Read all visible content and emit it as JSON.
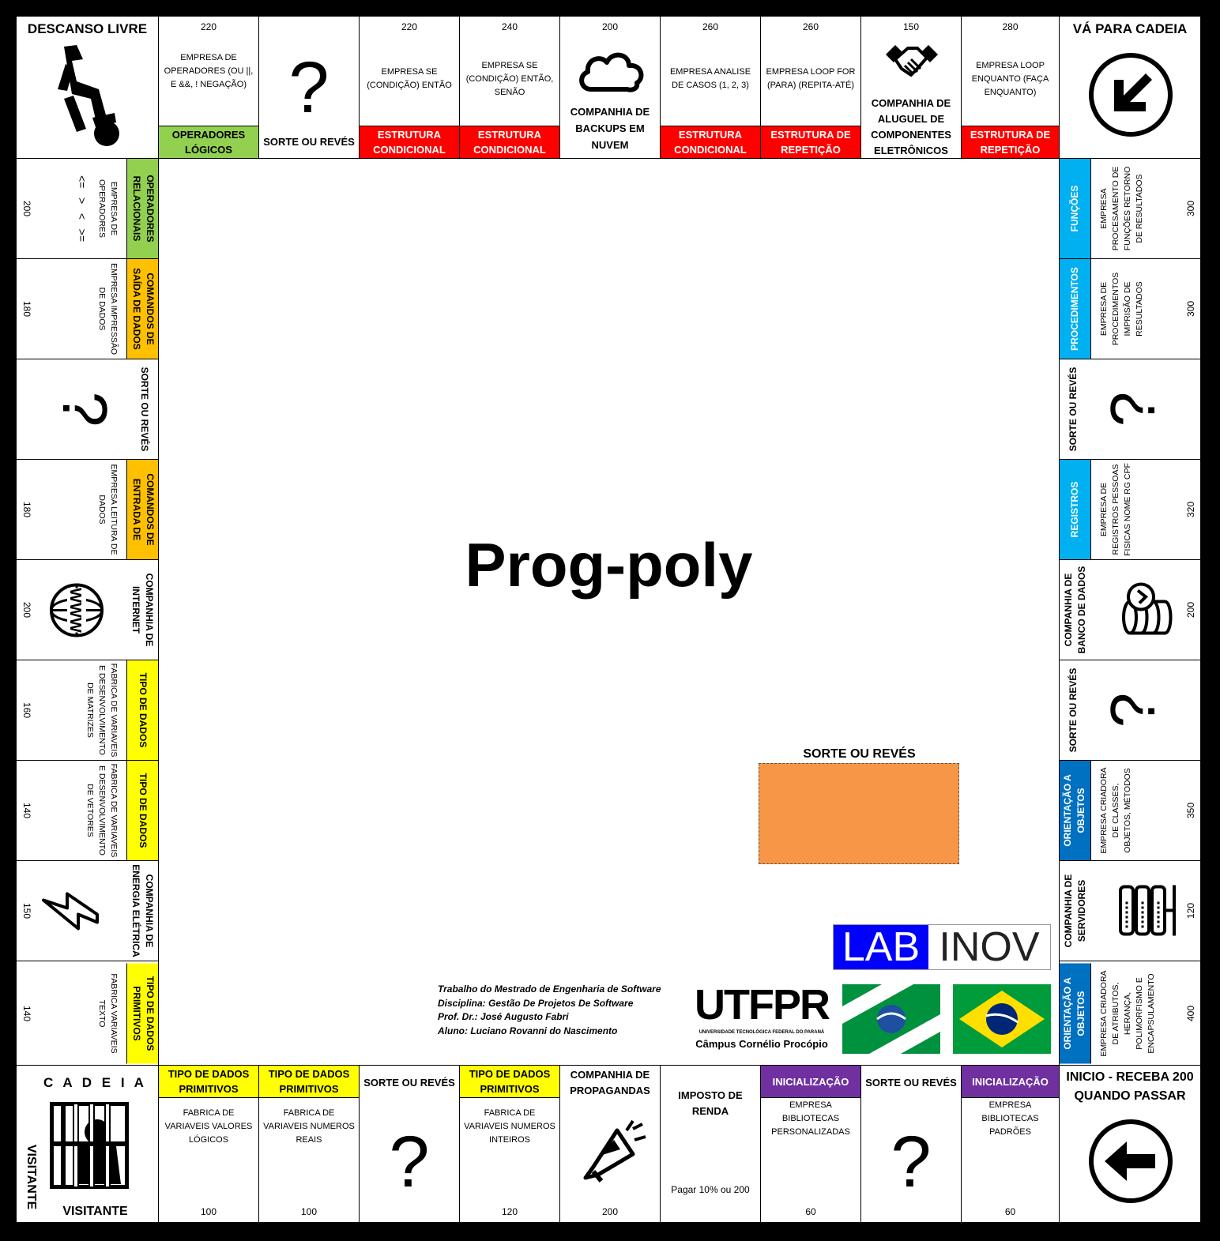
{
  "game": {
    "title": "Prog-poly"
  },
  "colors": {
    "green": "#92d050",
    "red": "#ff0000",
    "orange": "#ffc000",
    "yellow": "#ffff00",
    "light_blue": "#00b0f0",
    "dark_blue": "#0070c0",
    "purple": "#7030a0",
    "card_orange": "#f79646"
  },
  "corners": {
    "free_parking": "DESCANSO LIVRE",
    "go_to_jail": "VÁ PARA CADEIA",
    "jail_top": "C A D E I A",
    "jail_side": "VISITANTE",
    "jail_bottom": "VISITANTE",
    "start_line1": "INICIO - RECEBA 200",
    "start_line2": "QUANDO PASSAR"
  },
  "top_row": [
    {
      "price": "220",
      "desc": "EMPRESA DE OPERADORES (OU ||, E &&, ! NEGAÇÃO)",
      "band": "OPERADORES LÓGICOS",
      "color": "#92d050"
    },
    {
      "label": "SORTE OU REVÉS",
      "icon": "question-mark"
    },
    {
      "price": "220",
      "desc": "EMPRESA SE (CONDIÇÃO) ENTÃO",
      "band": "ESTRUTURA CONDICIONAL",
      "color": "#ff0000"
    },
    {
      "price": "240",
      "desc": "EMPRESA SE (CONDIÇÃO) ENTÃO, SENÃO",
      "band": "ESTRUTURA CONDICIONAL",
      "color": "#ff0000"
    },
    {
      "price": "200",
      "label": "COMPANHIA DE BACKUPS EM NUVEM",
      "icon": "cloud"
    },
    {
      "price": "260",
      "desc": "EMPRESA ANALISE DE CASOS (1, 2, 3)",
      "band": "ESTRUTURA CONDICIONAL",
      "color": "#ff0000"
    },
    {
      "price": "260",
      "desc": "EMPRESA LOOP FOR (PARA) (REPITA-ATÉ)",
      "band": "ESTRUTURA DE REPETIÇÃO",
      "color": "#ff0000"
    },
    {
      "price": "150",
      "label": "COMPANHIA DE ALUGUEL DE COMPONENTES ELETRÔNICOS",
      "icon": "handshake"
    },
    {
      "price": "280",
      "desc": "EMPRESA LOOP ENQUANTO (FAÇA ENQUANTO)",
      "band": "ESTRUTURA DE REPETIÇÃO",
      "color": "#ff0000"
    }
  ],
  "bottom_row": [
    {
      "price": "100",
      "desc": "FABRICA DE VARIAVEIS VALORES LÓGICOS",
      "band": "TIPO DE DADOS PRIMITIVOS",
      "color": "#ffff00"
    },
    {
      "price": "100",
      "desc": "FABRICA DE VARIAVEIS NUMEROS REAIS",
      "band": "TIPO DE DADOS PRIMITIVOS",
      "color": "#ffff00"
    },
    {
      "label": "SORTE OU REVÉS",
      "icon": "question-mark"
    },
    {
      "price": "120",
      "desc": "FABRICA DE VARIAVEIS NUMEROS INTEIROS",
      "band": "TIPO DE DADOS PRIMITIVOS",
      "color": "#ffff00"
    },
    {
      "price": "200",
      "label": "COMPANHIA DE PROPAGANDAS",
      "icon": "megaphone"
    },
    {
      "label": "IMPOSTO DE RENDA",
      "note": "Pagar 10% ou 200"
    },
    {
      "price": "60",
      "desc": "EMPRESA BIBLIOTECAS PERSONALIZADAS",
      "band": "INICIALIZAÇÃO",
      "color": "#7030a0"
    },
    {
      "label": "SORTE OU REVÉS",
      "icon": "question-mark"
    },
    {
      "price": "60",
      "desc": "EMPRESA BIBLIOTECAS PADRÕES",
      "band": "INICIALIZAÇÃO",
      "color": "#7030a0"
    }
  ],
  "left_col": [
    {
      "price": "200",
      "desc": "EMPRESA DE OPERADORES",
      "ops": "<=   >   <   >=",
      "band": "OPERADORES RELACIONAIS",
      "color": "#92d050"
    },
    {
      "price": "180",
      "desc": "EMPRESA IMPRESSÃO DE DADOS",
      "band": "COMANDOS DE SAÍDA DE DADOS",
      "color": "#ffc000"
    },
    {
      "label": "SORTE OU REVÉS",
      "icon": "question-mark"
    },
    {
      "price": "180",
      "desc": "EMPRESA LEITURA DE DADOS",
      "band": "COMANDOS DE ENTRADA DE",
      "color": "#ffc000"
    },
    {
      "price": "200",
      "label": "COMPANHIA DE INTERNET",
      "icon": "www-globe"
    },
    {
      "price": "160",
      "desc": "FABRICA DE VARIAVEIS E DESENVOLVIMENTO DE MATRIZES",
      "band": "TIPO DE DADOS",
      "color": "#ffff00"
    },
    {
      "price": "140",
      "desc": "FABRICA DE VARIAVEIS E DESENVOLVIMENTO DE VETORES",
      "band": "TIPO DE DADOS",
      "color": "#ffff00"
    },
    {
      "price": "150",
      "label": "COMPANHIA DE ENERGIA ELÉTRICA",
      "icon": "lightning"
    },
    {
      "price": "140",
      "desc": "FABRICA VARIAVEIS TEXTO",
      "band": "TIPO DE DADOS PRIMITIVOS",
      "color": "#ffff00"
    }
  ],
  "right_col": [
    {
      "price": "300",
      "desc": "EMPRESA PROCESAMENTO DE FUNÇÕES RETORNO DE RESULTADOS",
      "band": "FUNÇÕES",
      "color": "#00b0f0"
    },
    {
      "price": "300",
      "desc": "EMPRESA DE PROCEDIMENTOS IMPRISÃO DE RESULTADOS",
      "band": "PROCEDIMENTOS",
      "color": "#00b0f0"
    },
    {
      "label": "SORTE OU REVÉS",
      "icon": "question-mark"
    },
    {
      "price": "320",
      "desc": "EMPRESA DE REGISTROS PESSOAS FISICAS NOME RG CPF",
      "band": "REGISTROS",
      "color": "#00b0f0"
    },
    {
      "price": "200",
      "label": "COMPANHIA DE BANCO DE DADOS",
      "icon": "database-coins"
    },
    {
      "label": "SORTE OU REVÉS",
      "icon": "question-mark"
    },
    {
      "price": "350",
      "desc": "EMPRESA CRIADORA DE CLASSES, OBJETOS, MÉTODOS",
      "band": "ORIENTAÇÃO A OBJETOS",
      "color": "#0070c0"
    },
    {
      "price": "120",
      "label": "COMPANHIA DE SERVIDORES",
      "icon": "server-rack"
    },
    {
      "price": "400",
      "desc": "EMPRESA CRIADORA DE ATRIBUTOS, HERANÇA, POLIMORFISMO E ENCAPSULAMENTO",
      "band": "ORIENTAÇÃO A OBJETOS",
      "color": "#0070c0"
    }
  ],
  "center": {
    "card_label": "SORTE OU REVÉS",
    "credits": [
      "Trabalho do Mestrado de Engenharia de Software",
      "Disciplina: Gestão De Projetos De Software",
      "Prof. Dr.: José Augusto Fabri",
      "Aluno: Luciano Rovanni do Nascimento"
    ],
    "labinov": {
      "lab": "LAB",
      "inov": "INOV"
    },
    "utfpr": {
      "logo": "UTFPR",
      "university": "UNIVERSIDADE TECNOLÓGICA FEDERAL DO PARANÁ",
      "campus": "Câmpus Cornélio Procópio"
    }
  }
}
